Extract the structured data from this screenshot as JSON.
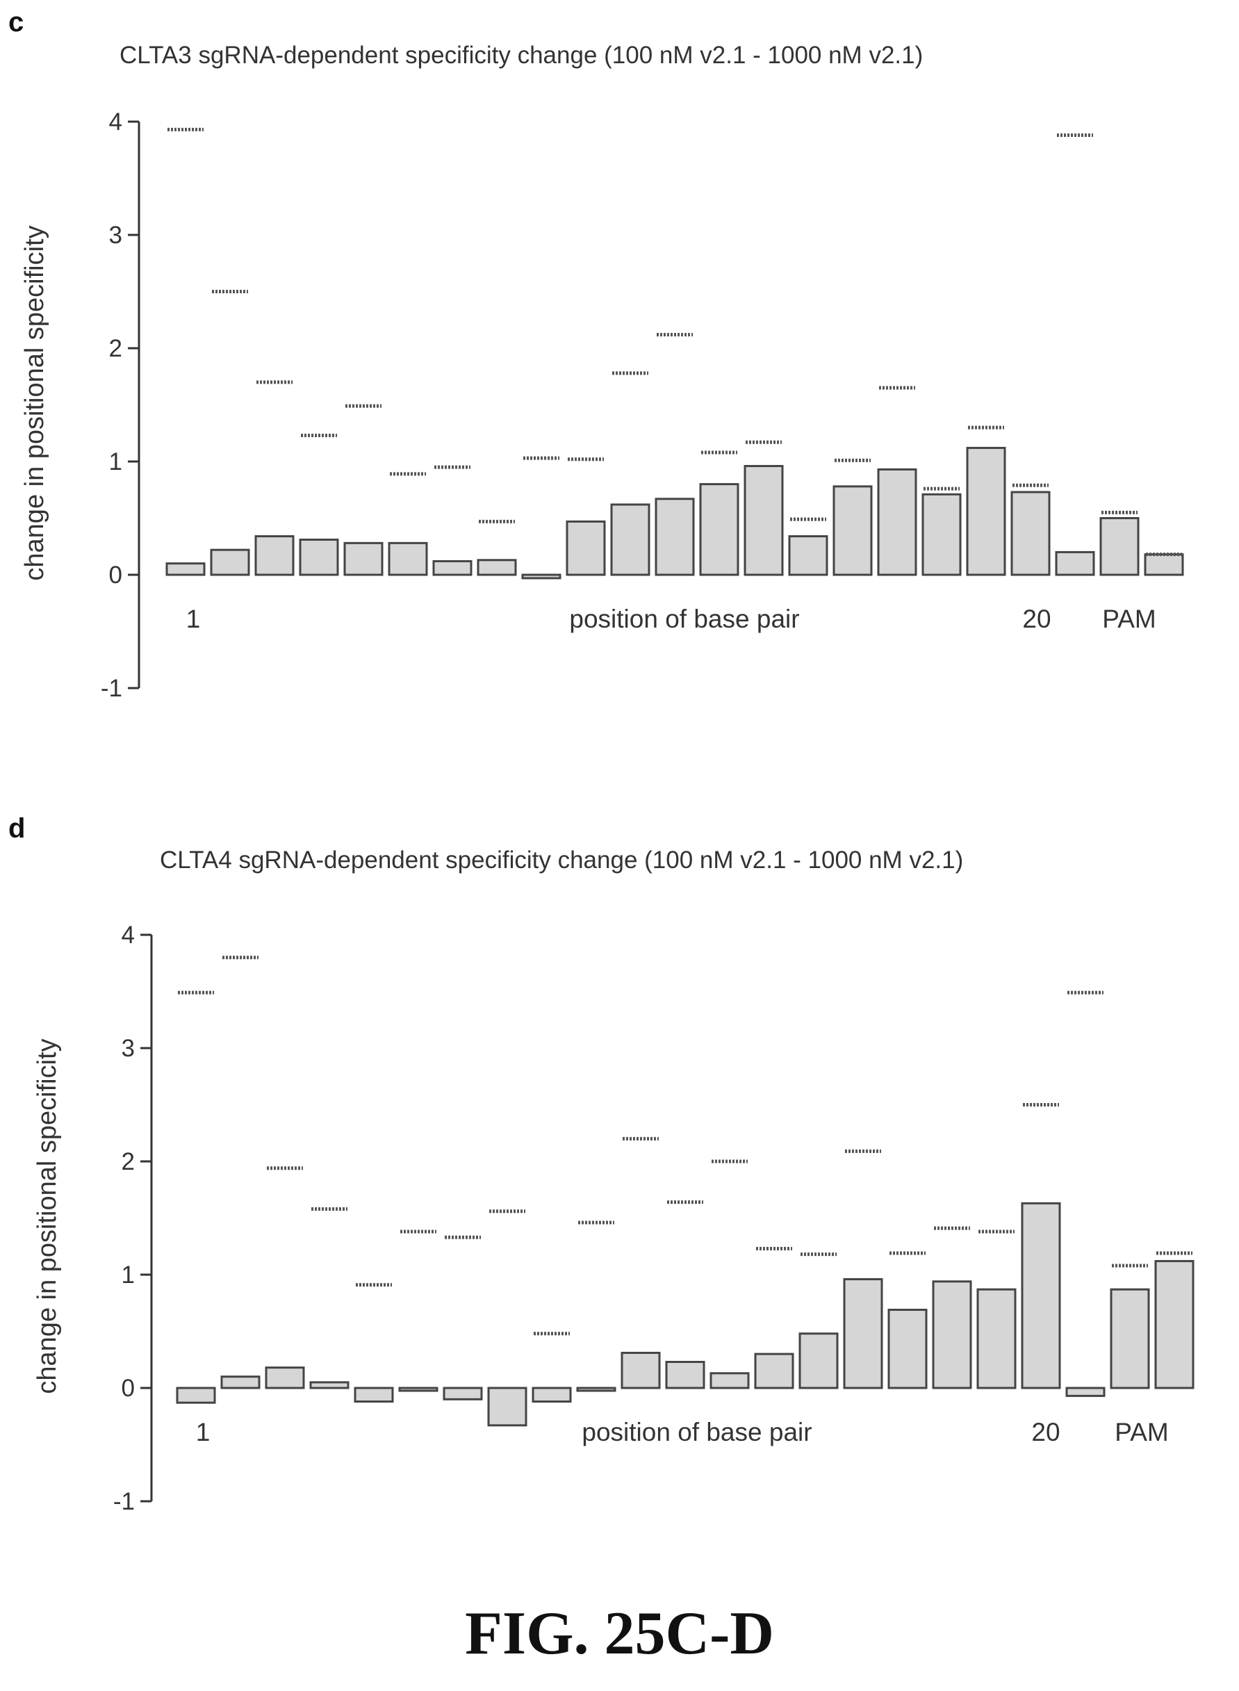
{
  "figure_caption": "FIG. 25C-D",
  "chart_data": [
    {
      "type": "bar",
      "panel_letter": "c",
      "title": "CLTA3 sgRNA-dependent specificity change (100 nM v2.1 - 1000 nM v2.1)",
      "ylabel": "change in positional specificity",
      "xlabel": "position of base pair",
      "ylim": [
        -1,
        4
      ],
      "yticks": [
        "4",
        "3",
        "2",
        "1",
        "0",
        "-1"
      ],
      "ytick_values": [
        4,
        3,
        2,
        1,
        0,
        -1
      ],
      "position_labels": {
        "first": "1",
        "last": "20",
        "pam": "PAM"
      },
      "categories": [
        "1",
        "2",
        "3",
        "4",
        "5",
        "6",
        "7",
        "8",
        "9",
        "10",
        "11",
        "12",
        "13",
        "14",
        "15",
        "16",
        "17",
        "18",
        "19",
        "20",
        "P1",
        "P2",
        "P3"
      ],
      "series": [
        {
          "values": [
            0.1,
            0.22,
            0.34,
            0.31,
            0.28,
            0.28,
            0.12,
            0.13,
            -0.03,
            0.47,
            0.62,
            0.67,
            0.8,
            0.96,
            0.34,
            0.78,
            0.93,
            0.71,
            1.12,
            0.73,
            0.2,
            0.5,
            0.18
          ]
        },
        {
          "values": [
            3.93,
            2.5,
            1.7,
            1.23,
            1.49,
            0.89,
            0.95,
            0.47,
            1.03,
            1.02,
            1.78,
            2.12,
            1.08,
            1.17,
            0.49,
            1.01,
            1.65,
            0.76,
            1.3,
            0.79,
            3.88,
            0.55,
            0.18
          ]
        }
      ]
    },
    {
      "type": "bar",
      "panel_letter": "d",
      "title": "CLTA4 sgRNA-dependent specificity change (100 nM v2.1 - 1000 nM v2.1)",
      "ylabel": "change in positional specificity",
      "xlabel": "position of base pair",
      "ylim": [
        -1,
        4
      ],
      "yticks": [
        "4",
        "3",
        "2",
        "1",
        "0",
        "-1"
      ],
      "ytick_values": [
        4,
        3,
        2,
        1,
        0,
        -1
      ],
      "position_labels": {
        "first": "1",
        "last": "20",
        "pam": "PAM"
      },
      "categories": [
        "1",
        "2",
        "3",
        "4",
        "5",
        "6",
        "7",
        "8",
        "9",
        "10",
        "11",
        "12",
        "13",
        "14",
        "15",
        "16",
        "17",
        "18",
        "19",
        "20",
        "P1",
        "P2",
        "P3"
      ],
      "series": [
        {
          "values": [
            -0.13,
            0.1,
            0.18,
            0.05,
            -0.12,
            0.0,
            -0.1,
            -0.33,
            -0.12,
            0.0,
            0.31,
            0.23,
            0.13,
            0.3,
            0.48,
            0.96,
            0.69,
            0.94,
            0.87,
            1.63,
            -0.07,
            0.87,
            1.12
          ]
        },
        {
          "values": [
            3.49,
            3.8,
            1.94,
            1.58,
            0.91,
            1.38,
            1.33,
            1.56,
            0.48,
            1.46,
            2.2,
            1.64,
            2.0,
            1.23,
            1.18,
            2.09,
            1.19,
            1.41,
            1.38,
            2.5,
            3.49,
            1.08,
            1.19
          ]
        }
      ]
    }
  ]
}
